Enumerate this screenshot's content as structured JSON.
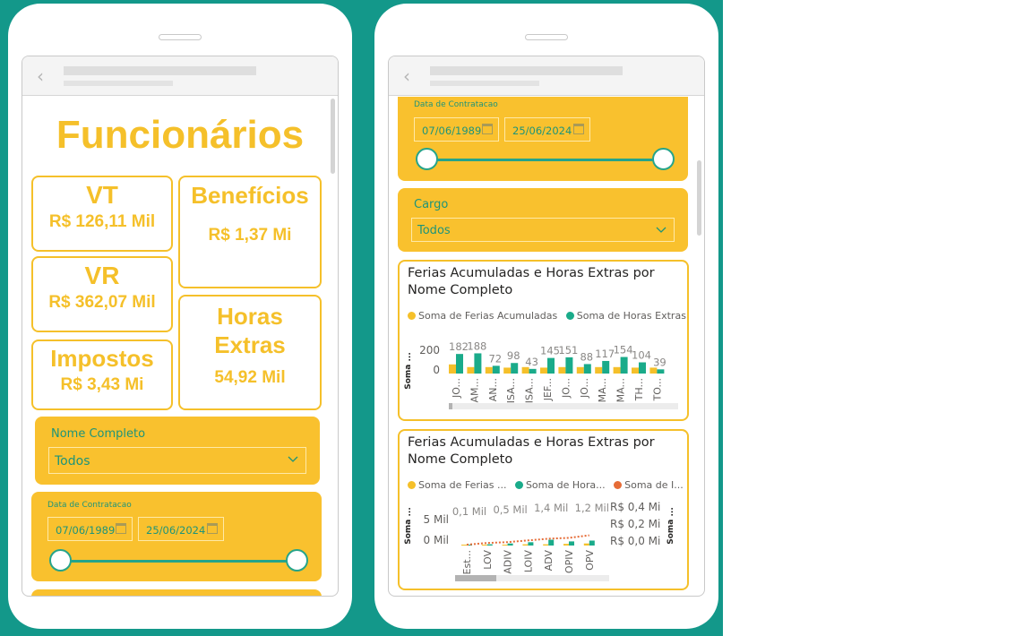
{
  "left": {
    "title": "Funcionários",
    "cards": {
      "vt": {
        "label": "VT",
        "value": "R$ 126,11 Mil"
      },
      "beneficios": {
        "label": "Benefícios",
        "value": "R$ 1,37 Mi"
      },
      "vr": {
        "label": "VR",
        "value": "R$ 362,07 Mil"
      },
      "impostos": {
        "label": "Impostos",
        "value": "R$ 3,43 Mi"
      },
      "horas_line1": "Horas",
      "horas_line2": "Extras",
      "horas_value": "54,92 Mil"
    },
    "nome_filter": {
      "title": "Nome Completo",
      "value": "Todos"
    },
    "date_filter": {
      "title": "Data de Contratacao",
      "start": "07/06/1989",
      "end": "25/06/2024"
    }
  },
  "right": {
    "date_filter": {
      "title": "Data de Contratacao",
      "start": "07/06/1989",
      "end": "25/06/2024"
    },
    "cargo_filter": {
      "title": "Cargo",
      "value": "Todos"
    },
    "chart1": {
      "title_line1": "Ferias Acumuladas e Horas Extras por",
      "title_line2": "Nome Completo",
      "legend1": "Soma de Ferias Acumuladas",
      "legend2": "Soma de Horas Extras",
      "ylabel": "Soma ...",
      "ytick_top": "200",
      "ytick_bottom": "0"
    },
    "chart2": {
      "title_line1": "Ferias Acumuladas e Horas Extras por",
      "title_line2": "Nome Completo",
      "legend1": "Soma de Ferias ...",
      "legend2": "Soma de Hora...",
      "legend3": "Soma de I...",
      "ylabel_left": "Soma ...",
      "ylabel_right": "Soma ...",
      "ytick_left_top": "5 Mil",
      "ytick_left_bottom": "0 Mil",
      "ytick_right_top": "R$ 0,4 Mi",
      "ytick_right_mid": "R$ 0,2 Mi",
      "ytick_right_bottom": "R$ 0,0 Mi"
    }
  },
  "colors": {
    "yellow": "#f5c02a",
    "green": "#1aab8a",
    "orange": "#e66c37",
    "teal_bg": "#13988a"
  },
  "chart_data": [
    {
      "type": "bar",
      "title": "Ferias Acumuladas e Horas Extras por Nome Completo",
      "ylabel": "Soma ...",
      "categories": [
        "JO...",
        "AM...",
        "AN...",
        "ISA...",
        "ISA...",
        "JEF...",
        "JO...",
        "JO...",
        "MA...",
        "MA...",
        "TH...",
        "TO..."
      ],
      "series": [
        {
          "name": "Soma de Ferias Acumuladas",
          "values": [
            85,
            60,
            60,
            55,
            60,
            55,
            60,
            60,
            60,
            60,
            55,
            55
          ]
        },
        {
          "name": "Soma de Horas Extras",
          "values": [
            182,
            188,
            72,
            98,
            43,
            145,
            151,
            88,
            117,
            154,
            104,
            39
          ]
        }
      ],
      "data_labels": [
        "182",
        "188",
        "72",
        "98",
        "43",
        "145",
        "151",
        "88",
        "117",
        "154",
        "104",
        "39"
      ],
      "yticks": [
        "200",
        "0"
      ]
    },
    {
      "type": "bar",
      "title": "Ferias Acumuladas e Horas Extras por Nome Completo",
      "categories": [
        "Est...",
        "LOV",
        "ADIV",
        "LOIV",
        "ADV",
        "OPIV",
        "OPV"
      ],
      "series": [
        {
          "name": "Soma de Ferias ...",
          "values": [
            0.1,
            0.1,
            0.2,
            0.3,
            0.3,
            0.4,
            0.5
          ]
        },
        {
          "name": "Soma de Hora...",
          "values": [
            0.1,
            0.3,
            0.5,
            0.8,
            1.4,
            1.0,
            1.2
          ]
        },
        {
          "name": "Soma de I...",
          "values": [
            0.01,
            0.03,
            0.04,
            0.06,
            0.08,
            0.09,
            0.12
          ]
        }
      ],
      "data_labels": [
        "0,1 Mil",
        "0,5 Mil",
        "1,4 Mil",
        "1,2 Mil"
      ],
      "yticks_left": [
        "5 Mil",
        "0 Mil"
      ],
      "yticks_right": [
        "R$ 0,4 Mi",
        "R$ 0,2 Mi",
        "R$ 0,0 Mi"
      ]
    }
  ]
}
